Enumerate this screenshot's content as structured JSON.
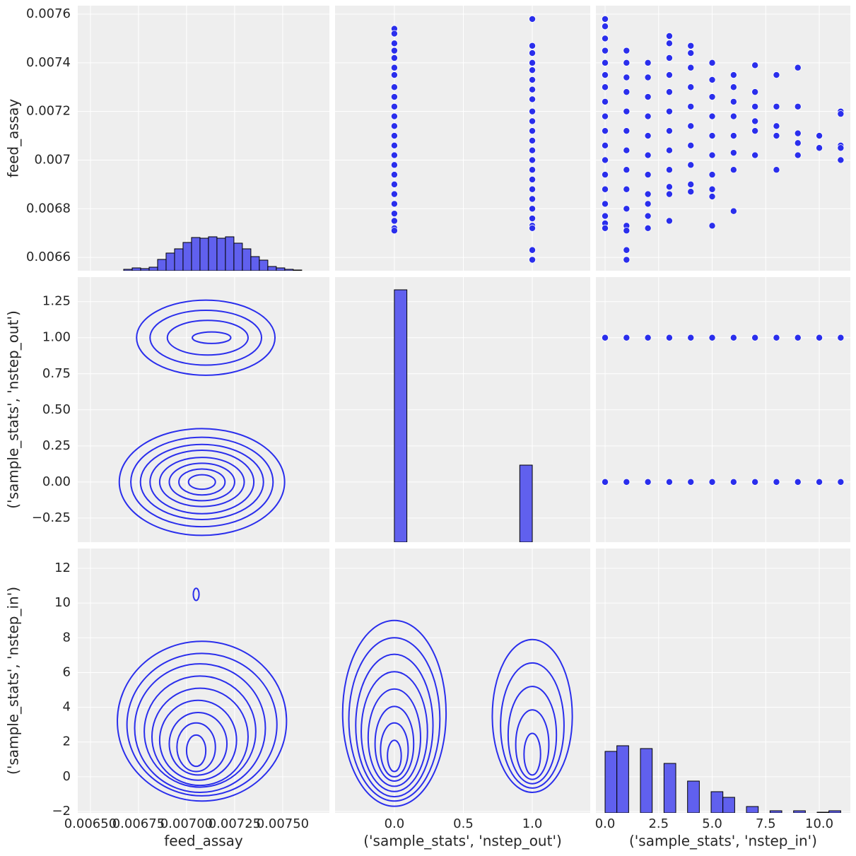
{
  "chart_data": [
    {
      "type": "histogram",
      "ylabel": "feed_assay",
      "ylim": [
        0.006545,
        0.007635
      ],
      "yticks": [
        0.0066,
        0.0068,
        0.007,
        0.0072,
        0.0074,
        0.0076
      ],
      "count_lim": [
        0,
        375
      ],
      "color": "#6060ee",
      "bins": [
        0.006673,
        0.0067171,
        0.0067612,
        0.0068053,
        0.0068494,
        0.0068935,
        0.0069376,
        0.0069817,
        0.0070258,
        0.0070699,
        0.007114,
        0.0071581,
        0.0072022,
        0.0072463,
        0.0072904,
        0.0073345,
        0.0073786,
        0.0074227,
        0.0074668,
        0.0075109,
        0.007555,
        0.0075991
      ],
      "counts": [
        2,
        4,
        3,
        5,
        16,
        25,
        31,
        40,
        47,
        46,
        48,
        46,
        48,
        39,
        31,
        20,
        15,
        6,
        4,
        2,
        1
      ]
    },
    {
      "type": "scatter",
      "color": "#2a2eec",
      "groups": [
        {
          "x": 0,
          "y": [
            0.00754,
            0.00752,
            0.00748,
            0.00745,
            0.00742,
            0.00738,
            0.00735,
            0.0073,
            0.00726,
            0.00722,
            0.00718,
            0.00714,
            0.0071,
            0.00706,
            0.00702,
            0.00698,
            0.00694,
            0.0069,
            0.00686,
            0.00682,
            0.00678,
            0.00675,
            0.00672,
            0.00671
          ]
        },
        {
          "x": 1,
          "y": [
            0.00758,
            0.00747,
            0.00744,
            0.0074,
            0.00737,
            0.00733,
            0.00729,
            0.00725,
            0.0072,
            0.00716,
            0.00712,
            0.00708,
            0.00704,
            0.007,
            0.00696,
            0.00692,
            0.00688,
            0.00684,
            0.0068,
            0.00676,
            0.00673,
            0.00672,
            0.00663,
            0.00659
          ]
        }
      ]
    },
    {
      "type": "scatter",
      "color": "#2a2eec",
      "groups": [
        {
          "x": 0,
          "y": [
            0.00758,
            0.00755,
            0.0075,
            0.00745,
            0.0074,
            0.00735,
            0.0073,
            0.00724,
            0.00718,
            0.00712,
            0.00706,
            0.007,
            0.00694,
            0.00688,
            0.00682,
            0.00677,
            0.00674,
            0.00672
          ]
        },
        {
          "x": 1,
          "y": [
            0.00745,
            0.0074,
            0.00734,
            0.00728,
            0.0072,
            0.00712,
            0.00704,
            0.00696,
            0.00688,
            0.0068,
            0.00673,
            0.00671,
            0.00663,
            0.00659
          ]
        },
        {
          "x": 2,
          "y": [
            0.0074,
            0.00734,
            0.00726,
            0.00718,
            0.0071,
            0.00702,
            0.00694,
            0.00686,
            0.00682,
            0.00677,
            0.00672
          ]
        },
        {
          "x": 3,
          "y": [
            0.00751,
            0.00748,
            0.00742,
            0.00735,
            0.00728,
            0.0072,
            0.00712,
            0.00704,
            0.00696,
            0.00689,
            0.00686,
            0.00675
          ]
        },
        {
          "x": 4,
          "y": [
            0.00747,
            0.00744,
            0.00738,
            0.0073,
            0.00722,
            0.00714,
            0.00706,
            0.00698,
            0.0069,
            0.00687
          ]
        },
        {
          "x": 5,
          "y": [
            0.0074,
            0.00733,
            0.00726,
            0.00718,
            0.0071,
            0.00702,
            0.00694,
            0.00688,
            0.00685,
            0.00673
          ]
        },
        {
          "x": 6,
          "y": [
            0.00735,
            0.0073,
            0.00724,
            0.00718,
            0.0071,
            0.00703,
            0.00696,
            0.00679
          ]
        },
        {
          "x": 7,
          "y": [
            0.00739,
            0.00728,
            0.00722,
            0.00716,
            0.00712,
            0.00702
          ]
        },
        {
          "x": 8,
          "y": [
            0.00735,
            0.00722,
            0.00714,
            0.0071,
            0.00696
          ]
        },
        {
          "x": 9,
          "y": [
            0.00738,
            0.00722,
            0.00711,
            0.00707,
            0.00702
          ]
        },
        {
          "x": 10,
          "y": [
            0.0071,
            0.00705
          ]
        },
        {
          "x": 11,
          "y": [
            0.0072,
            0.00719,
            0.00706,
            0.00705,
            0.007
          ]
        }
      ]
    },
    {
      "type": "kde",
      "color": "#2a2eec",
      "ylabel": "('sample_stats', 'nstep_out')",
      "ylim": [
        -0.417,
        1.42
      ],
      "yticks": [
        {
          "value": -0.25,
          "label": "−0.25"
        },
        {
          "value": 0,
          "label": "0.00"
        },
        0.25,
        {
          "value": 0.5,
          "label": "0.50"
        },
        0.75,
        {
          "value": 1,
          "label": "1.00"
        },
        1.25
      ],
      "contours": [
        {
          "cx": 0.0071,
          "cy": 1.0,
          "rx": 0.00036,
          "ry": 0.26
        },
        {
          "cx": 0.0071,
          "cy": 1.0,
          "rx": 0.00029,
          "ry": 0.19
        },
        {
          "cx": 0.00711,
          "cy": 1.0,
          "rx": 0.00021,
          "ry": 0.12
        },
        {
          "cx": 0.00713,
          "cy": 1.0,
          "rx": 0.0001,
          "ry": 0.04
        },
        {
          "cx": 0.00708,
          "cy": 0,
          "rx": 0.00043,
          "ry": 0.37
        },
        {
          "cx": 0.00708,
          "cy": 0,
          "rx": 0.00037,
          "ry": 0.31
        },
        {
          "cx": 0.00708,
          "cy": 0,
          "rx": 0.00032,
          "ry": 0.26
        },
        {
          "cx": 0.00708,
          "cy": 0,
          "rx": 0.00027,
          "ry": 0.22
        },
        {
          "cx": 0.00708,
          "cy": 0,
          "rx": 0.00022,
          "ry": 0.17
        },
        {
          "cx": 0.00708,
          "cy": 0,
          "rx": 0.00017,
          "ry": 0.13
        },
        {
          "cx": 0.00708,
          "cy": 0,
          "rx": 0.00012,
          "ry": 0.09
        },
        {
          "cx": 0.00708,
          "cy": 0,
          "rx": 7e-05,
          "ry": 0.05
        }
      ]
    },
    {
      "type": "histogram",
      "count_lim": [
        0,
        375
      ],
      "color": "#6060ee",
      "bins": [
        0,
        0.0909,
        0.1818,
        0.2727,
        0.3636,
        0.4545,
        0.5455,
        0.6364,
        0.7273,
        0.8182,
        0.9091,
        1.0
      ],
      "counts": [
        357,
        0,
        0,
        0,
        0,
        0,
        0,
        0,
        0,
        0,
        109
      ]
    },
    {
      "type": "scatter",
      "color": "#2a2eec",
      "groups": [
        {
          "x": 0,
          "y": [
            0,
            1
          ]
        },
        {
          "x": 1,
          "y": [
            0,
            1
          ]
        },
        {
          "x": 2,
          "y": [
            0,
            1
          ]
        },
        {
          "x": 3,
          "y": [
            0,
            1
          ]
        },
        {
          "x": 4,
          "y": [
            0,
            1
          ]
        },
        {
          "x": 5,
          "y": [
            0,
            1
          ]
        },
        {
          "x": 6,
          "y": [
            0,
            1
          ]
        },
        {
          "x": 7,
          "y": [
            0,
            1
          ]
        },
        {
          "x": 8,
          "y": [
            0,
            1
          ]
        },
        {
          "x": 9,
          "y": [
            0,
            1
          ]
        },
        {
          "x": 10,
          "y": [
            0,
            1
          ]
        },
        {
          "x": 11,
          "y": [
            0,
            1
          ]
        }
      ]
    },
    {
      "type": "kde",
      "color": "#2a2eec",
      "ylabel": "('sample_stats', 'nstep_in')",
      "xlabel": "feed_assay",
      "ylim": [
        -2.08,
        13.14
      ],
      "yticks": [
        {
          "value": -2,
          "label": "−2"
        },
        0,
        2,
        4,
        6,
        8,
        10,
        12
      ],
      "xlim": [
        0.006434,
        0.007743
      ],
      "xticks": [
        {
          "value": 0.0065,
          "label": "0.00650"
        },
        {
          "value": 0.00675,
          "label": "0.00675"
        },
        {
          "value": 0.007,
          "label": "0.00700"
        },
        {
          "value": 0.00725,
          "label": "0.00725"
        },
        {
          "value": 0.0075,
          "label": "0.00750"
        }
      ],
      "contours": [
        {
          "cx": 0.00708,
          "cy": 3.2,
          "rx": 0.00044,
          "ry": 4.6
        },
        {
          "cx": 0.00708,
          "cy": 3.0,
          "rx": 0.00039,
          "ry": 4.1
        },
        {
          "cx": 0.00707,
          "cy": 2.8,
          "rx": 0.00034,
          "ry": 3.7
        },
        {
          "cx": 0.00707,
          "cy": 2.6,
          "rx": 0.00029,
          "ry": 3.2
        },
        {
          "cx": 0.00707,
          "cy": 2.3,
          "rx": 0.00025,
          "ry": 2.8
        },
        {
          "cx": 0.00706,
          "cy": 2.1,
          "rx": 0.0002,
          "ry": 2.3
        },
        {
          "cx": 0.00706,
          "cy": 1.9,
          "rx": 0.00015,
          "ry": 1.8
        },
        {
          "cx": 0.00705,
          "cy": 1.7,
          "rx": 0.0001,
          "ry": 1.4
        },
        {
          "cx": 0.00705,
          "cy": 1.5,
          "rx": 5e-05,
          "ry": 0.9
        },
        {
          "cx": 0.00705,
          "cy": 10.5,
          "rx": 1.5e-05,
          "ry": 0.35
        }
      ]
    },
    {
      "type": "kde",
      "color": "#2a2eec",
      "xlabel": "('sample_stats', 'nstep_out')",
      "xlim": [
        -0.43,
        1.42
      ],
      "xticks": [
        {
          "value": 0,
          "label": "0.0"
        },
        0.5,
        {
          "value": 1,
          "label": "1.0"
        }
      ],
      "contours": [
        {
          "cx": 0,
          "cy": 3.65,
          "rx": 0.375,
          "ry": 5.35
        },
        {
          "cx": 0,
          "cy": 3.3,
          "rx": 0.33,
          "ry": 4.7
        },
        {
          "cx": 0,
          "cy": 2.95,
          "rx": 0.28,
          "ry": 4.1
        },
        {
          "cx": 0,
          "cy": 2.6,
          "rx": 0.24,
          "ry": 3.45
        },
        {
          "cx": 0,
          "cy": 2.25,
          "rx": 0.19,
          "ry": 2.8
        },
        {
          "cx": 0,
          "cy": 1.9,
          "rx": 0.14,
          "ry": 2.15
        },
        {
          "cx": 0,
          "cy": 1.55,
          "rx": 0.1,
          "ry": 1.55
        },
        {
          "cx": 0,
          "cy": 1.2,
          "rx": 0.05,
          "ry": 0.9
        },
        {
          "cx": 1,
          "cy": 3.5,
          "rx": 0.29,
          "ry": 4.4
        },
        {
          "cx": 1,
          "cy": 2.95,
          "rx": 0.23,
          "ry": 3.6
        },
        {
          "cx": 1,
          "cy": 2.4,
          "rx": 0.175,
          "ry": 2.8
        },
        {
          "cx": 1,
          "cy": 1.85,
          "rx": 0.12,
          "ry": 2.0
        },
        {
          "cx": 1,
          "cy": 1.3,
          "rx": 0.06,
          "ry": 1.2
        }
      ]
    },
    {
      "type": "histogram",
      "xlabel": "('sample_stats', 'nstep_in')",
      "count_lim": [
        0,
        374
      ],
      "color": "#6060ee",
      "xlim": [
        -0.43,
        11.45
      ],
      "xticks": [
        {
          "value": 0,
          "label": "0.0"
        },
        2.5,
        {
          "value": 5,
          "label": "5.0"
        },
        7.5,
        {
          "value": 10,
          "label": "10.0"
        }
      ],
      "bins": [
        0,
        0.55,
        1.1,
        1.65,
        2.2,
        2.75,
        3.3,
        3.85,
        4.4,
        4.95,
        5.5,
        6.05,
        6.6,
        7.15,
        7.7,
        8.25,
        8.8,
        9.35,
        9.9,
        10.45,
        11
      ],
      "counts": [
        87,
        95,
        0,
        91,
        0,
        70,
        0,
        45,
        0,
        30,
        22,
        0,
        9,
        0,
        3,
        0,
        3,
        0,
        1,
        3
      ]
    }
  ]
}
